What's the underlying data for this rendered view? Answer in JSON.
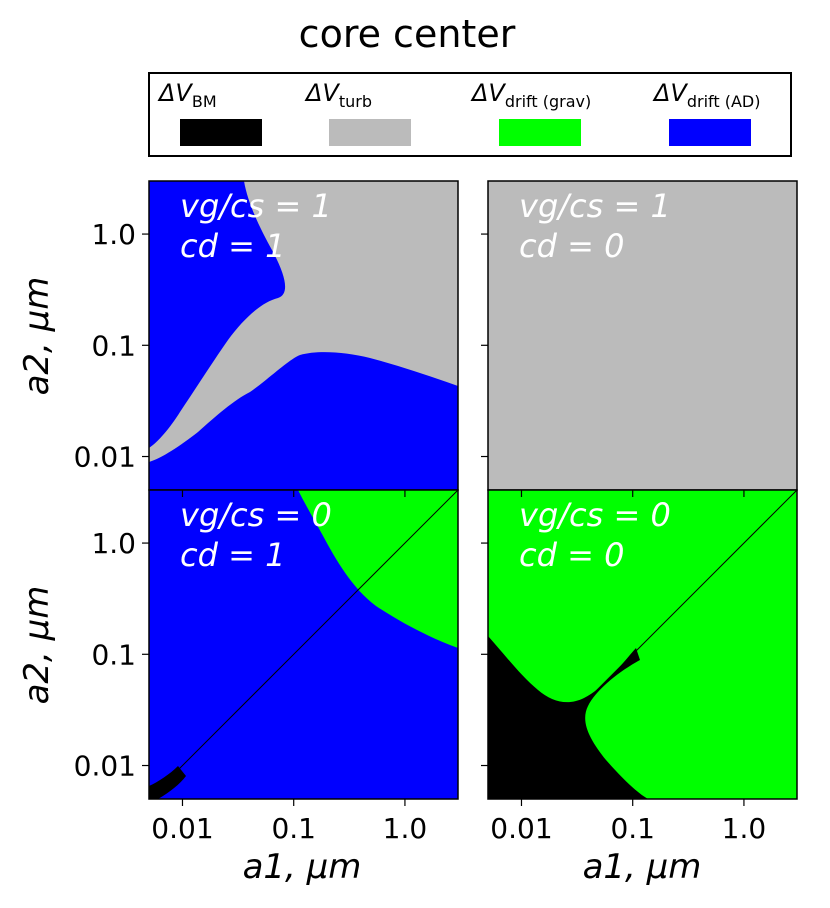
{
  "chart_data": {
    "type": "heatmap",
    "title": "core center",
    "xlabel": "a1, μm",
    "ylabel": "a2, μm",
    "xscale": "log",
    "yscale": "log",
    "xlim": [
      0.005,
      3.0
    ],
    "ylim": [
      0.005,
      3.0
    ],
    "xticks": [
      0.01,
      0.1,
      1.0
    ],
    "xtick_labels": [
      "0.01",
      "0.1",
      "1.0"
    ],
    "yticks": [
      0.01,
      0.1,
      1.0
    ],
    "ytick_labels": [
      "0.01",
      "0.1",
      "1.0"
    ],
    "legend": {
      "placement": "top",
      "entries": [
        {
          "label": "ΔV_BM",
          "base": "ΔV",
          "sub": "BM",
          "color": "#000000"
        },
        {
          "label": "ΔV_turb",
          "base": "ΔV",
          "sub": "turb",
          "color": "#bbbbbb"
        },
        {
          "label": "ΔV_drift(grav)",
          "base": "ΔV",
          "sub": "drift (grav)",
          "color": "#00ff00"
        },
        {
          "label": "ΔV_drift(AD)",
          "base": "ΔV",
          "sub": "drift (AD)",
          "color": "#0000ff"
        }
      ]
    },
    "panels": [
      {
        "id": "top-left",
        "row": 0,
        "col": 0,
        "label1": "vg/cs = 1",
        "label2": "cd = 1",
        "dominant": [
          "ΔV_drift(AD)",
          "ΔV_turb"
        ]
      },
      {
        "id": "top-right",
        "row": 0,
        "col": 1,
        "label1": "vg/cs = 1",
        "label2": "cd = 0",
        "dominant": [
          "ΔV_turb"
        ]
      },
      {
        "id": "bottom-left",
        "row": 1,
        "col": 0,
        "label1": "vg/cs = 0",
        "label2": "cd = 1",
        "dominant": [
          "ΔV_drift(AD)",
          "ΔV_drift(grav)",
          "ΔV_BM"
        ]
      },
      {
        "id": "bottom-right",
        "row": 1,
        "col": 1,
        "label1": "vg/cs = 0",
        "label2": "cd = 0",
        "dominant": [
          "ΔV_drift(grav)",
          "ΔV_BM"
        ]
      }
    ]
  }
}
